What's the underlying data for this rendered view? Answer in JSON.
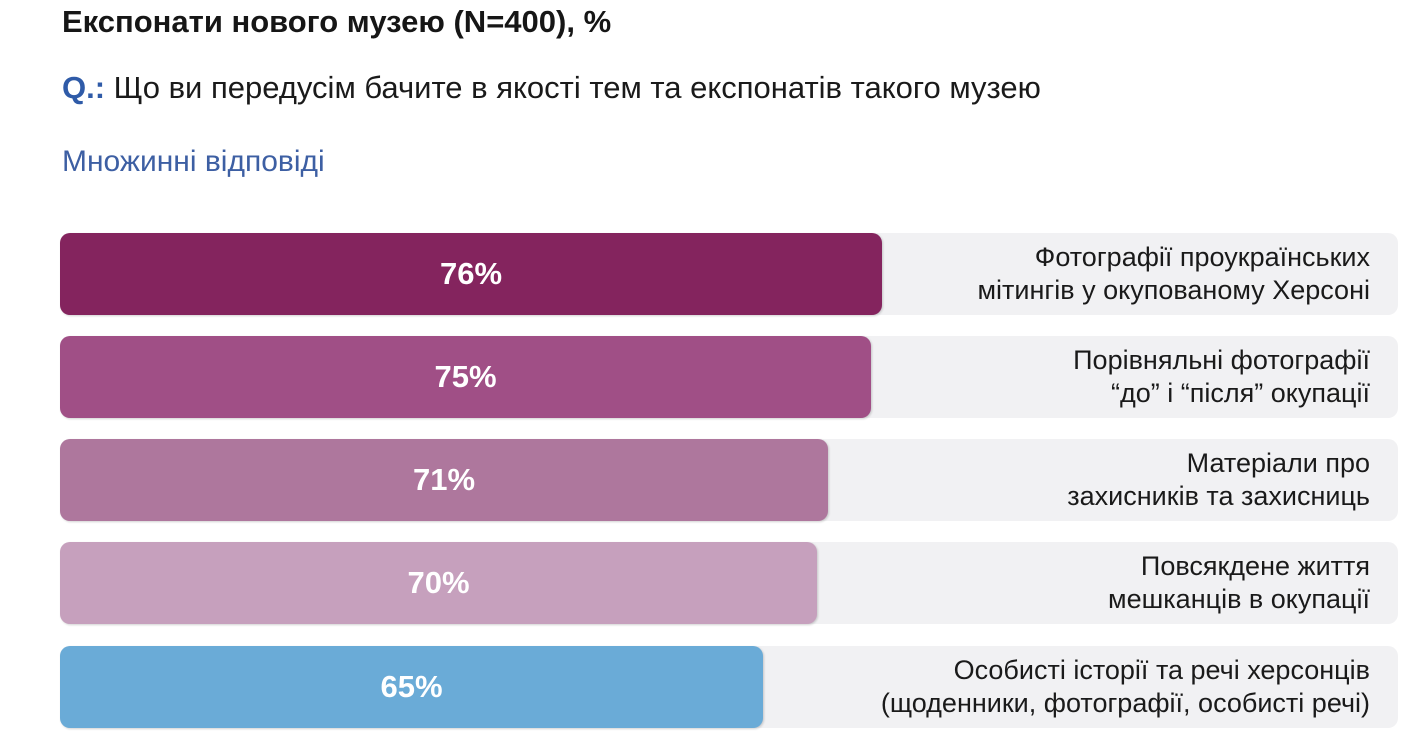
{
  "header": {
    "title": "Експонати нового музею (N=400), %",
    "question_label": "Q.:",
    "question_text": " Що ви передусім бачите в якості тем та експонатів такого музею",
    "subtitle": "Множинні відповіді"
  },
  "chart_data": {
    "type": "bar",
    "orientation": "horizontal",
    "xlim": [
      0,
      100
    ],
    "grid": false,
    "categories": [
      [
        "Фотографії проукраїнських",
        "мітингів у окупованому Херсоні"
      ],
      [
        "Порівняльні фотографії",
        "“до” і “після” окупації"
      ],
      [
        "Матеріали про",
        "захисників та захисниць"
      ],
      [
        "Повсякдене життя",
        "мешканців в окупації"
      ],
      [
        "Особисті історії та речі херсонців",
        "(щоденники, фотографії, особисті речі)"
      ]
    ],
    "values": [
      76,
      75,
      71,
      70,
      65
    ],
    "value_labels": [
      "76%",
      "75%",
      "71%",
      "70%",
      "65%"
    ],
    "colors": [
      "#84245e",
      "#a04f86",
      "#ae779d",
      "#c6a0bd",
      "#6aabd7"
    ]
  }
}
